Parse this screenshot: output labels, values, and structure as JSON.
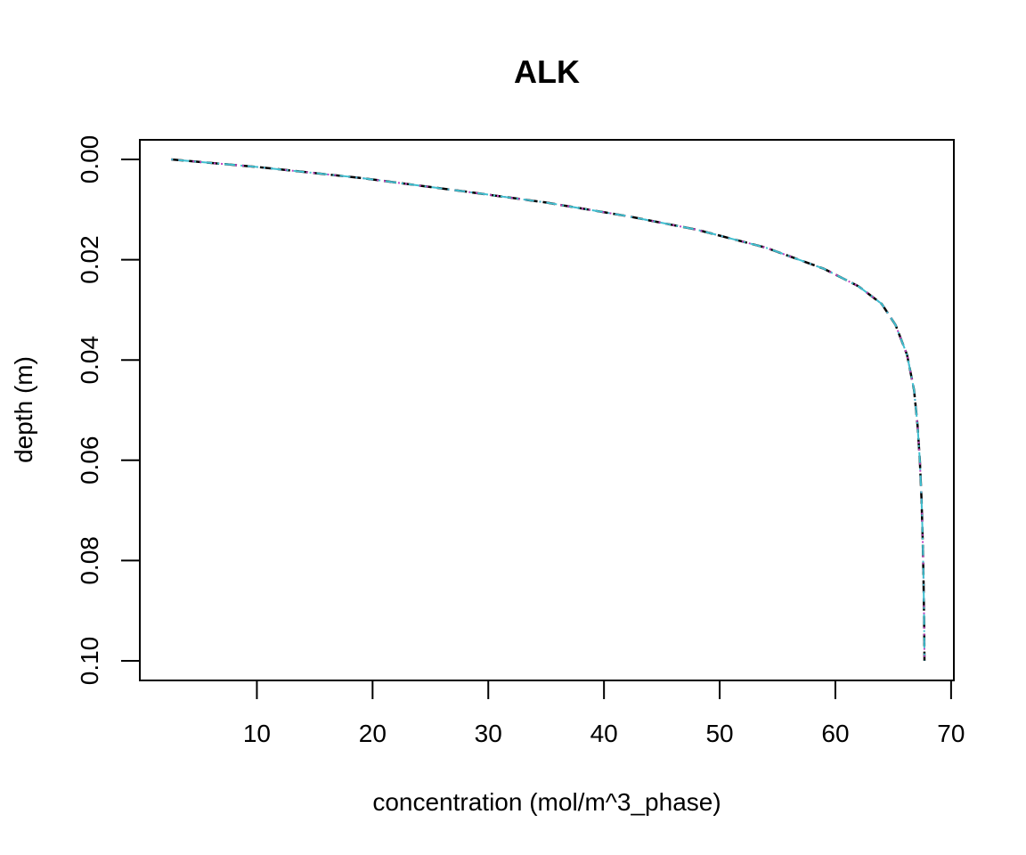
{
  "chart_data": {
    "type": "line",
    "title": "ALK",
    "xlabel": "concentration (mol/m^3_phase)",
    "ylabel": "depth (m)",
    "xlim": [
      2.5,
      67.7
    ],
    "ylim": [
      0.1,
      0.0
    ],
    "y_inverted": true,
    "grid": false,
    "legend": "none",
    "x_ticks": [
      10,
      20,
      30,
      40,
      50,
      60,
      70
    ],
    "x_tick_labels": [
      "10",
      "20",
      "30",
      "40",
      "50",
      "60",
      "70"
    ],
    "y_ticks": [
      0.0,
      0.02,
      0.04,
      0.06,
      0.08,
      0.1
    ],
    "y_tick_labels": [
      "0.00",
      "0.02",
      "0.04",
      "0.06",
      "0.08",
      "0.10"
    ],
    "series": [
      {
        "color": "#000000",
        "dash": "dashed",
        "x": [
          2.6,
          10,
          19,
          28,
          35,
          42,
          48,
          54,
          59,
          62,
          64,
          65.2,
          66.2,
          66.8,
          67.1,
          67.3,
          67.45,
          67.55,
          67.62,
          67.67,
          67.7
        ],
        "y": [
          0.0,
          0.0015,
          0.0037,
          0.0064,
          0.0086,
          0.0113,
          0.014,
          0.0176,
          0.0218,
          0.0253,
          0.0288,
          0.033,
          0.039,
          0.046,
          0.053,
          0.06,
          0.068,
          0.076,
          0.084,
          0.092,
          0.1
        ]
      },
      {
        "color": "#c040c0",
        "dash": "dotted",
        "x": [
          2.6,
          10,
          19,
          28,
          35,
          42,
          48,
          54,
          59,
          62,
          64,
          65.2,
          66.2,
          66.8,
          67.1,
          67.3,
          67.45,
          67.55,
          67.62,
          67.67,
          67.7
        ],
        "y": [
          0.0,
          0.0015,
          0.0037,
          0.0064,
          0.0086,
          0.0113,
          0.014,
          0.0176,
          0.0218,
          0.0253,
          0.0288,
          0.033,
          0.039,
          0.046,
          0.053,
          0.06,
          0.068,
          0.076,
          0.084,
          0.092,
          0.1
        ]
      },
      {
        "color": "#40c0d0",
        "dash": "dotdash",
        "x": [
          2.6,
          10,
          19,
          28,
          35,
          42,
          48,
          54,
          59,
          62,
          64,
          65.2,
          66.2,
          66.8,
          67.1,
          67.3,
          67.45,
          67.55,
          67.62,
          67.67,
          67.7
        ],
        "y": [
          0.0,
          0.0015,
          0.0037,
          0.0064,
          0.0086,
          0.0113,
          0.014,
          0.0176,
          0.0218,
          0.0253,
          0.0288,
          0.033,
          0.039,
          0.046,
          0.053,
          0.06,
          0.068,
          0.076,
          0.084,
          0.092,
          0.1
        ]
      }
    ]
  }
}
